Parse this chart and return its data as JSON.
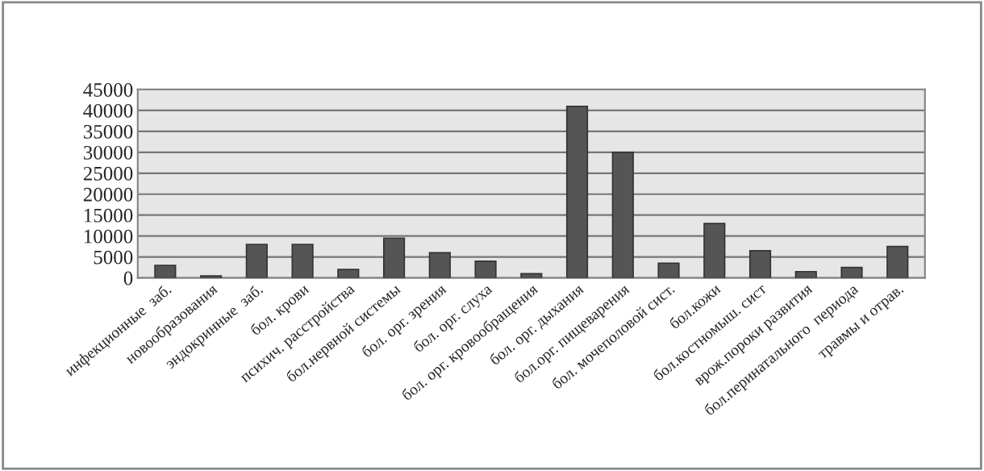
{
  "chart_data": {
    "type": "bar",
    "categories": [
      "инфекционные  заб.",
      "новообразования",
      "эндокринные  заб.",
      "бол. крови",
      "психич. расстройства",
      "бол.нервной системы",
      "бол. орг. зрения",
      "бол. орг. слуха",
      "бол. орг. кровообращения",
      "бол. орг. дыхания",
      "бол.орг. пищеварения",
      "бол. мочеполовой сист.",
      "бол.кожи",
      "бол.костномыш. сист",
      "врож.пороки развития",
      "бол.перинатального  периода",
      "травмы и отрав."
    ],
    "values": [
      3000,
      500,
      8000,
      8000,
      2000,
      9500,
      6000,
      4000,
      1000,
      41000,
      30000,
      3500,
      13000,
      6500,
      1500,
      2500,
      7500
    ],
    "color": "#555555",
    "ylim": [
      0,
      45000
    ],
    "yticks": [
      0,
      5000,
      10000,
      15000,
      20000,
      25000,
      30000,
      35000,
      40000,
      45000
    ],
    "grid": "y"
  }
}
